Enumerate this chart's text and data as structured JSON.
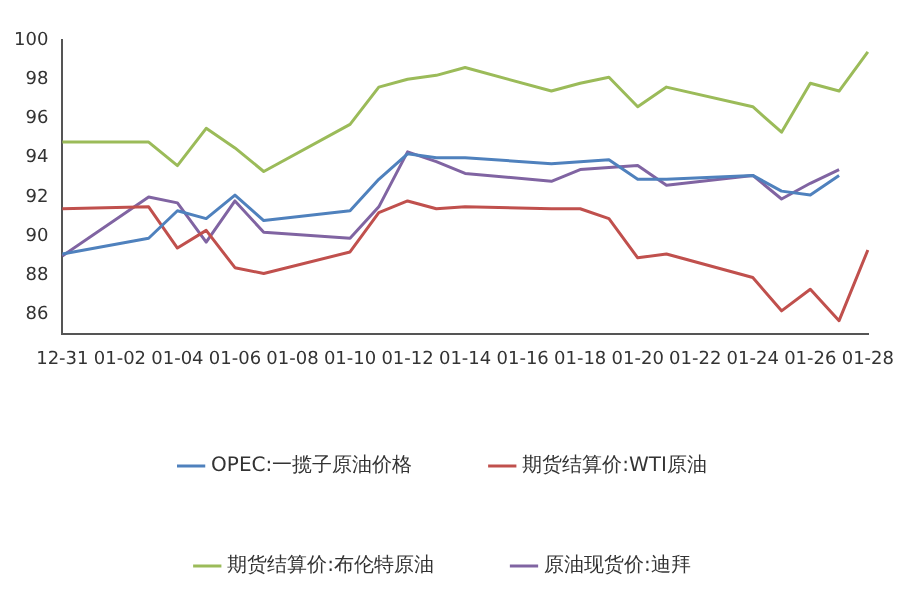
{
  "chart_data": {
    "type": "line",
    "categories": [
      "12-31",
      null,
      "01-02",
      null,
      "01-04",
      null,
      "01-06",
      null,
      "01-08",
      null,
      "01-10",
      null,
      "01-12",
      null,
      "01-14",
      null,
      "01-16",
      null,
      "01-18",
      null,
      "01-20",
      null,
      "01-22",
      null,
      "01-24",
      null,
      "01-26",
      null,
      "01-28"
    ],
    "series": [
      {
        "name": "OPEC:一揽子原油价格",
        "color": "#4f81bd",
        "values": [
          89.1,
          null,
          null,
          89.9,
          91.3,
          90.9,
          92.1,
          90.8,
          null,
          null,
          91.3,
          92.9,
          94.2,
          94.0,
          94.0,
          null,
          null,
          93.7,
          93.8,
          93.9,
          92.9,
          92.9,
          null,
          null,
          93.1,
          92.3,
          92.1,
          93.1,
          null
        ]
      },
      {
        "name": "期货结算价:WTI原油",
        "color": "#c0504d",
        "values": [
          91.4,
          null,
          null,
          91.5,
          89.4,
          90.3,
          88.4,
          88.1,
          null,
          null,
          89.2,
          91.2,
          91.8,
          91.4,
          91.5,
          null,
          null,
          91.4,
          91.4,
          90.9,
          88.9,
          89.1,
          null,
          null,
          87.9,
          86.2,
          87.3,
          85.7,
          89.3
        ]
      },
      {
        "name": "期货结算价:布伦特原油",
        "color": "#9bbb59",
        "values": [
          94.8,
          null,
          null,
          94.8,
          93.6,
          95.5,
          94.5,
          93.3,
          null,
          null,
          95.7,
          97.6,
          98.0,
          98.2,
          98.6,
          null,
          null,
          97.4,
          97.8,
          98.1,
          96.6,
          97.6,
          null,
          null,
          96.6,
          95.3,
          97.8,
          97.4,
          99.4
        ]
      },
      {
        "name": "原油现货价:迪拜",
        "color": "#8064a2",
        "values": [
          89.0,
          null,
          null,
          92.0,
          91.7,
          89.7,
          91.8,
          90.2,
          null,
          null,
          89.9,
          91.5,
          94.3,
          93.8,
          93.2,
          null,
          null,
          92.8,
          93.4,
          93.5,
          93.6,
          92.6,
          null,
          null,
          93.1,
          91.9,
          92.7,
          93.4,
          null
        ]
      }
    ],
    "ylim": [
      85,
      100
    ],
    "yticks": [
      86,
      88,
      90,
      92,
      94,
      96,
      98,
      100
    ],
    "grid": false,
    "legend": "bottom",
    "marker": "none",
    "line_style": "solid"
  }
}
